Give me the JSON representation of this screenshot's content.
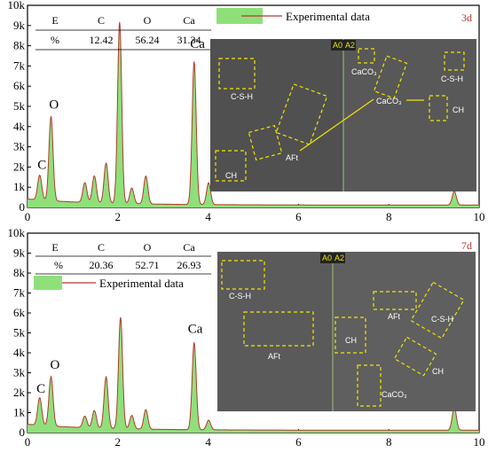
{
  "colors": {
    "fill": "#8fe07a",
    "line": "#b03a2e",
    "dash": "#f2e600",
    "sem_bg": "#4a4a4a"
  },
  "chart_data": [
    {
      "type": "area",
      "day_label": "3d",
      "legend": "Experimental data",
      "xlim": [
        0,
        10
      ],
      "ylim": [
        0,
        10000
      ],
      "x_ticks": [
        "0",
        "2",
        "4",
        "6",
        "8",
        "10"
      ],
      "y_ticks": [
        "0",
        "1k",
        "2k",
        "3k",
        "4k",
        "5k",
        "6k",
        "7k",
        "8k",
        "9k",
        "10k"
      ],
      "peaks": [
        {
          "x": 0.27,
          "y": 1350
        },
        {
          "x": 0.52,
          "y": 4300
        },
        {
          "x": 1.27,
          "y": 1100
        },
        {
          "x": 1.48,
          "y": 1450
        },
        {
          "x": 1.74,
          "y": 2100
        },
        {
          "x": 2.04,
          "y": 9100
        },
        {
          "x": 2.31,
          "y": 900
        },
        {
          "x": 2.62,
          "y": 1500
        },
        {
          "x": 3.69,
          "y": 7200
        },
        {
          "x": 4.01,
          "y": 1200
        },
        {
          "x": 9.45,
          "y": 800
        }
      ],
      "peak_labels": [
        {
          "text": "C",
          "x": 0.22,
          "y": 1900
        },
        {
          "text": "O",
          "x": 0.48,
          "y": 4900
        },
        {
          "text": "Ca",
          "x": 3.6,
          "y": 7900
        }
      ],
      "table": {
        "header": [
          "E",
          "C",
          "O",
          "Ca"
        ],
        "row": [
          "%",
          "12.42",
          "56.24",
          "31.34"
        ]
      },
      "sem_labels": {
        "panel_a": "A0",
        "panel_b": "A2",
        "csh_1": "C-S-H",
        "aft": "AFt",
        "ch_1": "CH",
        "caco3_1": "CaCO₃",
        "caco3_2": "CaCO₃",
        "csh_2": "C-S-H",
        "ch_2": "CH"
      }
    },
    {
      "type": "area",
      "day_label": "7d",
      "legend": "Experimental data",
      "xlim": [
        0,
        10
      ],
      "ylim": [
        0,
        10000
      ],
      "x_ticks": [
        "0",
        "2",
        "4",
        "6",
        "8",
        "10"
      ],
      "y_ticks": [
        "0",
        "1k",
        "2k",
        "3k",
        "4k",
        "5k",
        "6k",
        "7k",
        "8k",
        "9k",
        "10k"
      ],
      "peaks": [
        {
          "x": 0.27,
          "y": 1500
        },
        {
          "x": 0.52,
          "y": 2600
        },
        {
          "x": 1.27,
          "y": 700
        },
        {
          "x": 1.48,
          "y": 1000
        },
        {
          "x": 1.74,
          "y": 2700
        },
        {
          "x": 2.06,
          "y": 5700
        },
        {
          "x": 2.31,
          "y": 800
        },
        {
          "x": 2.62,
          "y": 1100
        },
        {
          "x": 3.69,
          "y": 4500
        },
        {
          "x": 4.01,
          "y": 600
        },
        {
          "x": 9.45,
          "y": 1300
        }
      ],
      "peak_labels": [
        {
          "text": "C",
          "x": 0.2,
          "y": 2000
        },
        {
          "text": "O",
          "x": 0.5,
          "y": 3200
        },
        {
          "text": "Ca",
          "x": 3.55,
          "y": 5000
        }
      ],
      "table": {
        "header": [
          "E",
          "C",
          "O",
          "Ca"
        ],
        "row": [
          "%",
          "20.36",
          "52.71",
          "26.93"
        ]
      },
      "sem_labels": {
        "panel_a": "A0",
        "panel_b": "A2",
        "csh_1": "C-S-H",
        "aft_1": "AFt",
        "aft_2": "AFt",
        "csh_2": "C-S-H",
        "ch_1": "CH",
        "ch_2": "CH",
        "caco3": "CaCO₃"
      }
    }
  ]
}
